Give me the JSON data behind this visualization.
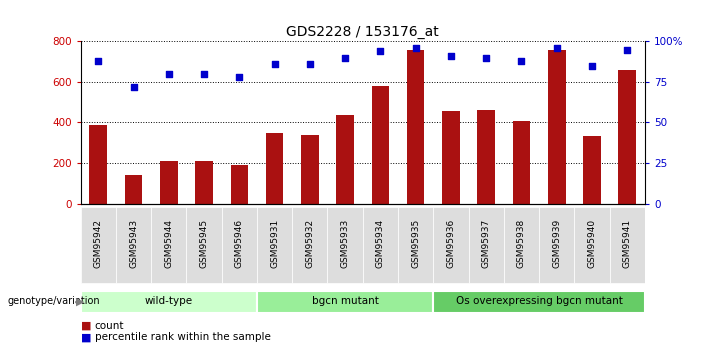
{
  "title": "GDS2228 / 153176_at",
  "samples": [
    "GSM95942",
    "GSM95943",
    "GSM95944",
    "GSM95945",
    "GSM95946",
    "GSM95931",
    "GSM95932",
    "GSM95933",
    "GSM95934",
    "GSM95935",
    "GSM95936",
    "GSM95937",
    "GSM95938",
    "GSM95939",
    "GSM95940",
    "GSM95941"
  ],
  "counts": [
    390,
    140,
    210,
    210,
    190,
    350,
    340,
    435,
    580,
    760,
    455,
    460,
    405,
    760,
    335,
    660
  ],
  "percentiles": [
    88,
    72,
    80,
    80,
    78,
    86,
    86,
    90,
    94,
    96,
    91,
    90,
    88,
    96,
    85,
    95
  ],
  "groups": [
    {
      "label": "wild-type",
      "start": 0,
      "end": 5,
      "color": "#ccffcc"
    },
    {
      "label": "bgcn mutant",
      "start": 5,
      "end": 10,
      "color": "#99ee99"
    },
    {
      "label": "Os overexpressing bgcn mutant",
      "start": 10,
      "end": 16,
      "color": "#66cc66"
    }
  ],
  "bar_color": "#aa1111",
  "dot_color": "#0000cc",
  "ylim_left": [
    0,
    800
  ],
  "ylim_right": [
    0,
    100
  ],
  "yticks_left": [
    0,
    200,
    400,
    600,
    800
  ],
  "yticks_right": [
    0,
    25,
    50,
    75,
    100
  ],
  "ytick_labels_right": [
    "0",
    "25",
    "50",
    "75",
    "100%"
  ],
  "grid_color": "black",
  "tick_bg_color": "#dddddd",
  "left_label_color": "#cc0000",
  "right_label_color": "#0000cc",
  "genotype_label": "genotype/variation",
  "legend_count": "count",
  "legend_percentile": "percentile rank within the sample"
}
